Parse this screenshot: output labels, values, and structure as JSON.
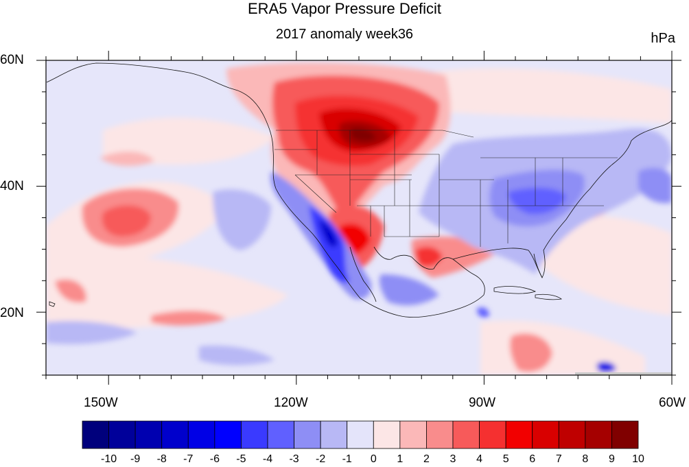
{
  "title": "ERA5 Vapor Pressure Deficit",
  "subtitle": "2017 anomaly week36",
  "units": "hPa",
  "map": {
    "lon_range": [
      -160,
      -60
    ],
    "lat_range": [
      10,
      60
    ],
    "lat_labels": [
      "60N",
      "40N",
      "20N"
    ],
    "lon_labels": [
      "150W",
      "120W",
      "90W",
      "60W"
    ],
    "region": "North Pacific / North America"
  },
  "colorbar": {
    "labels": [
      "-10",
      "-9",
      "-8",
      "-7",
      "-6",
      "-5",
      "-4",
      "-3",
      "-2",
      "-1",
      "0",
      "1",
      "2",
      "3",
      "4",
      "5",
      "6",
      "7",
      "8",
      "9",
      "10"
    ],
    "colors": [
      "#00007c",
      "#00009a",
      "#0000b0",
      "#0000cc",
      "#0000e6",
      "#0000ff",
      "#3a3aff",
      "#6060ff",
      "#8e8ef5",
      "#b8b8f5",
      "#e4e4fa",
      "#fce6e6",
      "#fbb8b8",
      "#f98c8c",
      "#f75a5a",
      "#f53030",
      "#f20000",
      "#d90000",
      "#bf0000",
      "#a50000",
      "#800000"
    ]
  }
}
